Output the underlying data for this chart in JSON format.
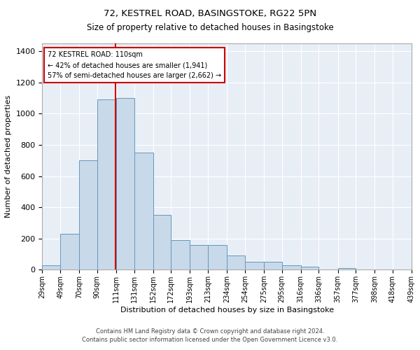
{
  "title1": "72, KESTREL ROAD, BASINGSTOKE, RG22 5PN",
  "title2": "Size of property relative to detached houses in Basingstoke",
  "xlabel": "Distribution of detached houses by size in Basingstoke",
  "ylabel": "Number of detached properties",
  "footer1": "Contains HM Land Registry data © Crown copyright and database right 2024.",
  "footer2": "Contains public sector information licensed under the Open Government Licence v3.0.",
  "annotation_title": "72 KESTREL ROAD: 110sqm",
  "annotation_line1": "← 42% of detached houses are smaller (1,941)",
  "annotation_line2": "57% of semi-detached houses are larger (2,662) →",
  "property_size": 110,
  "bar_color": "#c8d9ea",
  "bar_edge_color": "#6699bb",
  "vline_color": "#cc0000",
  "annotation_box_color": "#cc0000",
  "background_color": "#e8eef6",
  "ylim": [
    0,
    1450
  ],
  "yticks": [
    0,
    200,
    400,
    600,
    800,
    1000,
    1200,
    1400
  ],
  "bin_edges": [
    29,
    49,
    70,
    90,
    111,
    131,
    152,
    172,
    193,
    213,
    234,
    254,
    275,
    295,
    316,
    336,
    357,
    377,
    398,
    418,
    439
  ],
  "bin_labels": [
    "29sqm",
    "49sqm",
    "70sqm",
    "90sqm",
    "111sqm",
    "131sqm",
    "152sqm",
    "172sqm",
    "193sqm",
    "213sqm",
    "234sqm",
    "254sqm",
    "275sqm",
    "295sqm",
    "316sqm",
    "336sqm",
    "357sqm",
    "377sqm",
    "398sqm",
    "418sqm",
    "439sqm"
  ],
  "counts": [
    30,
    230,
    700,
    1090,
    1100,
    750,
    350,
    190,
    160,
    160,
    90,
    50,
    50,
    30,
    20,
    0,
    10,
    0,
    0,
    0
  ]
}
